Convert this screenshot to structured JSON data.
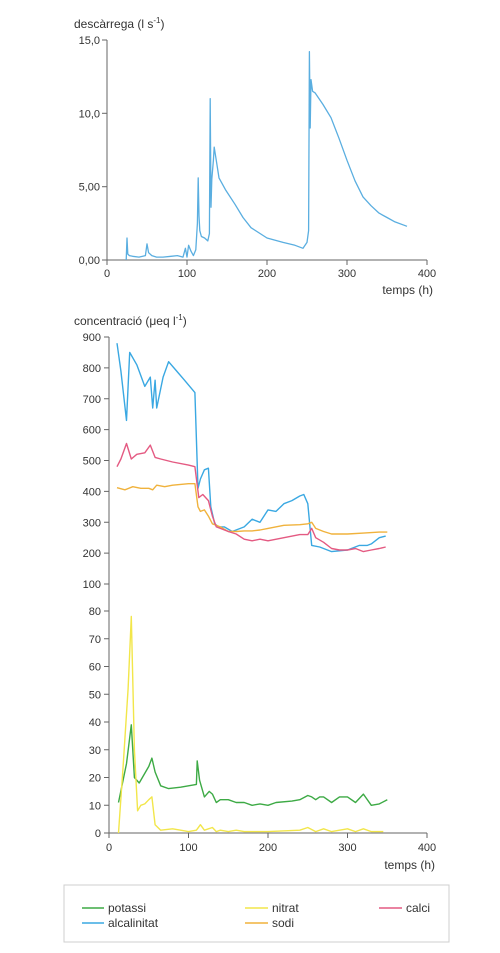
{
  "chart_data": [
    {
      "type": "line",
      "ylabel": "descàrrega (l s",
      "ylabel_sup": "-1",
      "ylabel_end": ")",
      "xlabel": "temps (h)",
      "xlim": [
        0,
        400
      ],
      "ylim": [
        0,
        15
      ],
      "xticks": [
        "0",
        "100",
        "200",
        "300",
        "400"
      ],
      "yticks": [
        "0,00",
        "5,00",
        "10,0",
        "15,0"
      ],
      "grid": false,
      "series": [
        {
          "color": "#5aaee0",
          "points": [
            [
              24,
              0
            ],
            [
              25,
              1.5
            ],
            [
              26,
              0.4
            ],
            [
              28,
              0.3
            ],
            [
              32,
              0.25
            ],
            [
              40,
              0.2
            ],
            [
              48,
              0.3
            ],
            [
              50,
              1.1
            ],
            [
              52,
              0.5
            ],
            [
              56,
              0.3
            ],
            [
              62,
              0.2
            ],
            [
              70,
              0.2
            ],
            [
              80,
              0.25
            ],
            [
              88,
              0.3
            ],
            [
              95,
              0.2
            ],
            [
              98,
              0.8
            ],
            [
              100,
              0.2
            ],
            [
              102,
              1.0
            ],
            [
              105,
              0.6
            ],
            [
              108,
              0.3
            ],
            [
              111,
              0.7
            ],
            [
              113,
              2.5
            ],
            [
              114,
              5.6
            ],
            [
              115,
              3.0
            ],
            [
              116,
              2.0
            ],
            [
              118,
              1.6
            ],
            [
              122,
              1.5
            ],
            [
              126,
              1.3
            ],
            [
              128,
              1.8
            ],
            [
              129,
              11.0
            ],
            [
              130,
              3.6
            ],
            [
              131,
              5.5
            ],
            [
              133,
              6.8
            ],
            [
              134,
              7.7
            ],
            [
              136,
              7.0
            ],
            [
              140,
              5.6
            ],
            [
              148,
              4.8
            ],
            [
              160,
              3.8
            ],
            [
              170,
              2.9
            ],
            [
              180,
              2.2
            ],
            [
              200,
              1.5
            ],
            [
              220,
              1.2
            ],
            [
              235,
              1.0
            ],
            [
              245,
              0.8
            ],
            [
              250,
              1.2
            ],
            [
              252,
              2.0
            ],
            [
              253,
              14.2
            ],
            [
              254,
              9.0
            ],
            [
              255,
              12.3
            ],
            [
              257,
              11.5
            ],
            [
              260,
              11.4
            ],
            [
              270,
              10.6
            ],
            [
              280,
              9.7
            ],
            [
              290,
              8.3
            ],
            [
              300,
              6.8
            ],
            [
              310,
              5.4
            ],
            [
              320,
              4.3
            ],
            [
              330,
              3.7
            ],
            [
              340,
              3.2
            ],
            [
              350,
              2.9
            ],
            [
              360,
              2.6
            ],
            [
              375,
              2.3
            ]
          ]
        }
      ]
    },
    {
      "type": "line",
      "ylabel": "concentració (μeq l",
      "ylabel_sup": "-1",
      "ylabel_end": ")",
      "xlabel": "temps (h)",
      "xlim": [
        0,
        400
      ],
      "y_axis_break": true,
      "yticks_low": [
        "0",
        "10",
        "20",
        "30",
        "40",
        "50",
        "60",
        "70",
        "80"
      ],
      "yticks_high": [
        "100",
        "200",
        "300",
        "400",
        "500",
        "600",
        "700",
        "800",
        "900"
      ],
      "xticks": [
        "0",
        "100",
        "200",
        "300",
        "400"
      ],
      "grid": false,
      "series": [
        {
          "name": "potassi",
          "color": "#3daa45",
          "points": [
            [
              12,
              11
            ],
            [
              22,
              25
            ],
            [
              28,
              39
            ],
            [
              32,
              20
            ],
            [
              38,
              18
            ],
            [
              50,
              24
            ],
            [
              54,
              27
            ],
            [
              58,
              22
            ],
            [
              65,
              17
            ],
            [
              75,
              16
            ],
            [
              90,
              16.5
            ],
            [
              100,
              17
            ],
            [
              110,
              17.5
            ],
            [
              111,
              26
            ],
            [
              114,
              19
            ],
            [
              120,
              13
            ],
            [
              126,
              15
            ],
            [
              130,
              14
            ],
            [
              135,
              11
            ],
            [
              140,
              12
            ],
            [
              150,
              12
            ],
            [
              160,
              11
            ],
            [
              170,
              11
            ],
            [
              180,
              10
            ],
            [
              190,
              10.5
            ],
            [
              200,
              10
            ],
            [
              210,
              11
            ],
            [
              230,
              11.5
            ],
            [
              240,
              12
            ],
            [
              250,
              13.5
            ],
            [
              255,
              13
            ],
            [
              260,
              12
            ],
            [
              265,
              13
            ],
            [
              270,
              13
            ],
            [
              280,
              11
            ],
            [
              290,
              13
            ],
            [
              300,
              13
            ],
            [
              310,
              11
            ],
            [
              320,
              14
            ],
            [
              330,
              10
            ],
            [
              340,
              10.5
            ],
            [
              350,
              12
            ]
          ]
        },
        {
          "name": "alcalinitat",
          "color": "#3aa8e2",
          "points": [
            [
              10,
              880
            ],
            [
              15,
              790
            ],
            [
              22,
              630
            ],
            [
              26,
              850
            ],
            [
              35,
              810
            ],
            [
              45,
              740
            ],
            [
              52,
              770
            ],
            [
              55,
              670
            ],
            [
              58,
              760
            ],
            [
              60,
              670
            ],
            [
              68,
              770
            ],
            [
              75,
              820
            ],
            [
              85,
              790
            ],
            [
              95,
              760
            ],
            [
              108,
              720
            ],
            [
              112,
              410
            ],
            [
              115,
              440
            ],
            [
              120,
              470
            ],
            [
              125,
              475
            ],
            [
              128,
              350
            ],
            [
              133,
              295
            ],
            [
              138,
              285
            ],
            [
              145,
              285
            ],
            [
              155,
              270
            ],
            [
              170,
              285
            ],
            [
              180,
              310
            ],
            [
              190,
              300
            ],
            [
              200,
              340
            ],
            [
              210,
              335
            ],
            [
              220,
              360
            ],
            [
              230,
              370
            ],
            [
              240,
              385
            ],
            [
              245,
              390
            ],
            [
              250,
              360
            ],
            [
              255,
              225
            ],
            [
              265,
              220
            ],
            [
              280,
              205
            ],
            [
              300,
              210
            ],
            [
              315,
              225
            ],
            [
              325,
              225
            ],
            [
              330,
              230
            ],
            [
              340,
              250
            ],
            [
              348,
              255
            ]
          ]
        },
        {
          "name": "nitrat",
          "color": "#f2e64a",
          "points": [
            [
              12,
              0
            ],
            [
              18,
              25
            ],
            [
              24,
              52
            ],
            [
              28,
              78
            ],
            [
              32,
              30
            ],
            [
              36,
              8
            ],
            [
              40,
              10
            ],
            [
              45,
              10.5
            ],
            [
              50,
              12
            ],
            [
              54,
              13
            ],
            [
              58,
              3
            ],
            [
              65,
              1
            ],
            [
              80,
              1.5
            ],
            [
              90,
              1
            ],
            [
              100,
              0.5
            ],
            [
              110,
              1
            ],
            [
              115,
              3
            ],
            [
              120,
              1
            ],
            [
              130,
              2
            ],
            [
              135,
              0.5
            ],
            [
              140,
              1
            ],
            [
              150,
              0.5
            ],
            [
              160,
              1
            ],
            [
              170,
              0.5
            ],
            [
              200,
              0.5
            ],
            [
              240,
              1
            ],
            [
              250,
              2
            ],
            [
              260,
              0.5
            ],
            [
              270,
              1.5
            ],
            [
              280,
              0.5
            ],
            [
              290,
              1
            ],
            [
              300,
              1.5
            ],
            [
              310,
              0.5
            ],
            [
              320,
              1.5
            ],
            [
              330,
              0.5
            ],
            [
              345,
              0.5
            ]
          ]
        },
        {
          "name": "sodi",
          "color": "#f0b23c",
          "points": [
            [
              10,
              412
            ],
            [
              20,
              405
            ],
            [
              30,
              415
            ],
            [
              40,
              410
            ],
            [
              50,
              410
            ],
            [
              55,
              405
            ],
            [
              60,
              420
            ],
            [
              70,
              415
            ],
            [
              80,
              420
            ],
            [
              100,
              425
            ],
            [
              108,
              425
            ],
            [
              112,
              350
            ],
            [
              115,
              335
            ],
            [
              120,
              340
            ],
            [
              125,
              320
            ],
            [
              130,
              295
            ],
            [
              140,
              285
            ],
            [
              150,
              270
            ],
            [
              160,
              270
            ],
            [
              170,
              272
            ],
            [
              180,
              272
            ],
            [
              190,
              275
            ],
            [
              200,
              280
            ],
            [
              220,
              290
            ],
            [
              240,
              292
            ],
            [
              250,
              295
            ],
            [
              255,
              300
            ],
            [
              260,
              280
            ],
            [
              270,
              270
            ],
            [
              280,
              262
            ],
            [
              300,
              262
            ],
            [
              320,
              265
            ],
            [
              340,
              268
            ],
            [
              350,
              268
            ]
          ]
        },
        {
          "name": "calci",
          "color": "#e45a82",
          "points": [
            [
              10,
              480
            ],
            [
              15,
              505
            ],
            [
              22,
              555
            ],
            [
              28,
              505
            ],
            [
              35,
              520
            ],
            [
              45,
              525
            ],
            [
              52,
              550
            ],
            [
              58,
              510
            ],
            [
              65,
              505
            ],
            [
              80,
              495
            ],
            [
              100,
              485
            ],
            [
              108,
              480
            ],
            [
              113,
              380
            ],
            [
              118,
              390
            ],
            [
              125,
              370
            ],
            [
              130,
              320
            ],
            [
              135,
              285
            ],
            [
              140,
              280
            ],
            [
              150,
              270
            ],
            [
              160,
              262
            ],
            [
              170,
              245
            ],
            [
              180,
              240
            ],
            [
              190,
              245
            ],
            [
              200,
              240
            ],
            [
              220,
              250
            ],
            [
              240,
              260
            ],
            [
              250,
              260
            ],
            [
              255,
              280
            ],
            [
              260,
              250
            ],
            [
              270,
              235
            ],
            [
              280,
              215
            ],
            [
              290,
              210
            ],
            [
              300,
              210
            ],
            [
              310,
              215
            ],
            [
              320,
              205
            ],
            [
              330,
              210
            ],
            [
              340,
              215
            ],
            [
              348,
              220
            ]
          ]
        }
      ]
    }
  ],
  "legend": {
    "items": [
      {
        "name": "potassi",
        "color": "#3daa45"
      },
      {
        "name": "alcalinitat",
        "color": "#3aa8e2"
      },
      {
        "name": "nitrat",
        "color": "#f2e64a"
      },
      {
        "name": "sodi",
        "color": "#f0b23c"
      },
      {
        "name": "calci",
        "color": "#e45a82"
      }
    ]
  }
}
